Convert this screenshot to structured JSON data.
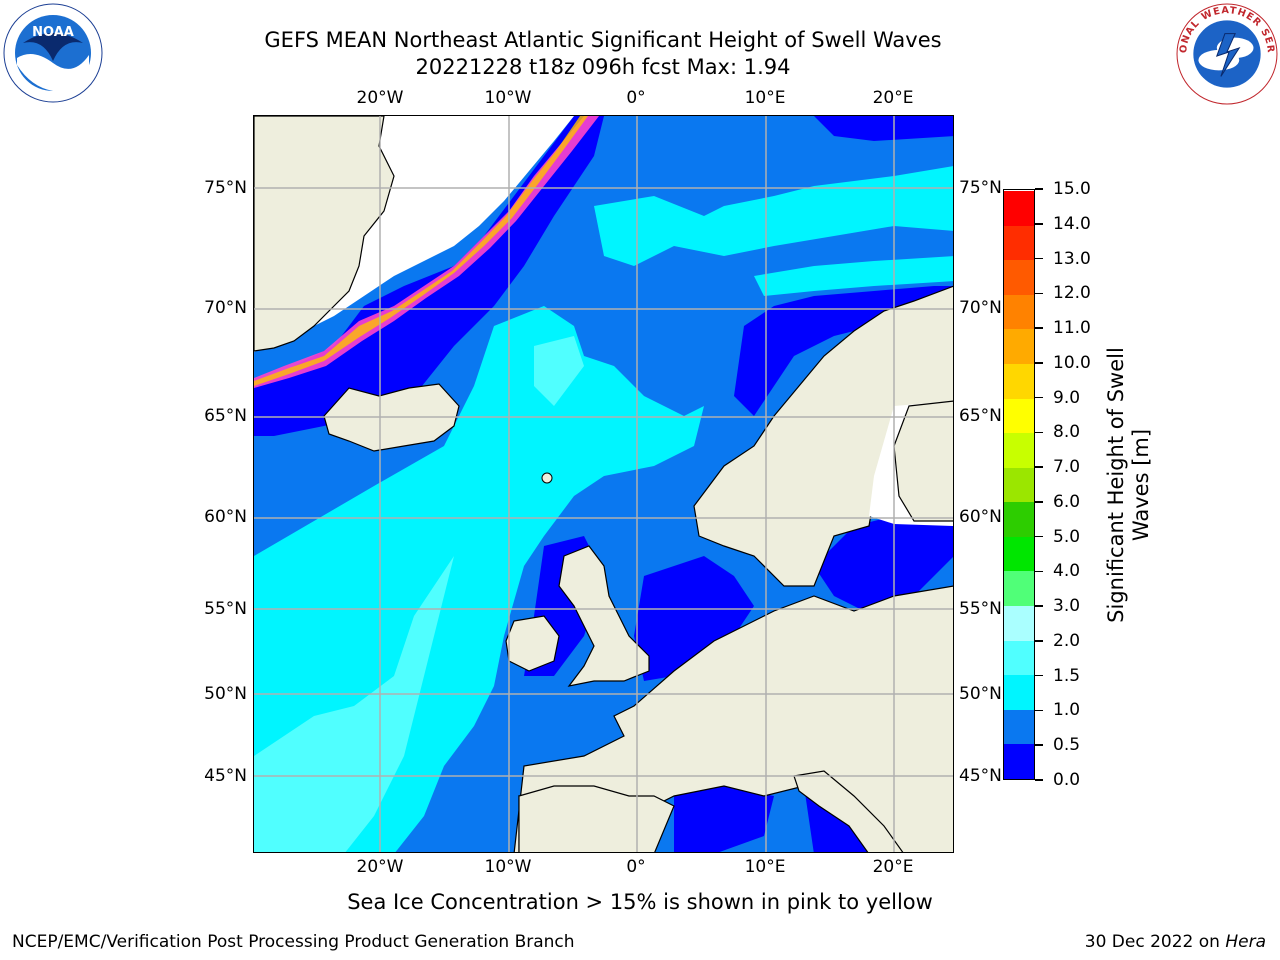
{
  "header": {
    "title_line1": "GEFS MEAN Northeast Atlantic Significant Height of Swell Waves",
    "title_line2": "20221228 t18z 096h fcst   Max: 1.94"
  },
  "logos": {
    "left": "NOAA",
    "right": "NATIONAL WEATHER SERVICE"
  },
  "map": {
    "lon_labels": [
      "20°W",
      "10°W",
      "0°",
      "10°E",
      "20°E"
    ],
    "lat_labels": [
      "75°N",
      "70°N",
      "65°N",
      "60°N",
      "55°N",
      "50°N",
      "45°N"
    ],
    "colors": {
      "land": "#eeeedd",
      "ice_white": "#ffffff",
      "grid": "#b0b0b0",
      "coast": "#000000"
    }
  },
  "colorbar": {
    "title": "Significant Height of Swell Waves [m]",
    "tick_labels": [
      "0.0",
      "0.5",
      "1.0",
      "1.5",
      "2.0",
      "3.0",
      "4.0",
      "5.0",
      "6.0",
      "7.0",
      "8.0",
      "9.0",
      "10.0",
      "11.0",
      "12.0",
      "13.0",
      "14.0",
      "15.0"
    ],
    "colors": [
      "#0000ff",
      "#0a78f0",
      "#00f5ff",
      "#50ffff",
      "#aaffff",
      "#50ff78",
      "#00e600",
      "#2dcd00",
      "#9be600",
      "#c8ff00",
      "#ffff00",
      "#ffd700",
      "#ffaa00",
      "#ff8200",
      "#ff5a00",
      "#ff2d00",
      "#ff0000"
    ]
  },
  "footer": {
    "note": "Sea Ice Concentration > 15% is shown in pink to yellow",
    "credit": "NCEP/EMC/Verification Post Processing Product Generation Branch",
    "date_prefix": "30 Dec 2022 on ",
    "date_machine": "Hera"
  }
}
